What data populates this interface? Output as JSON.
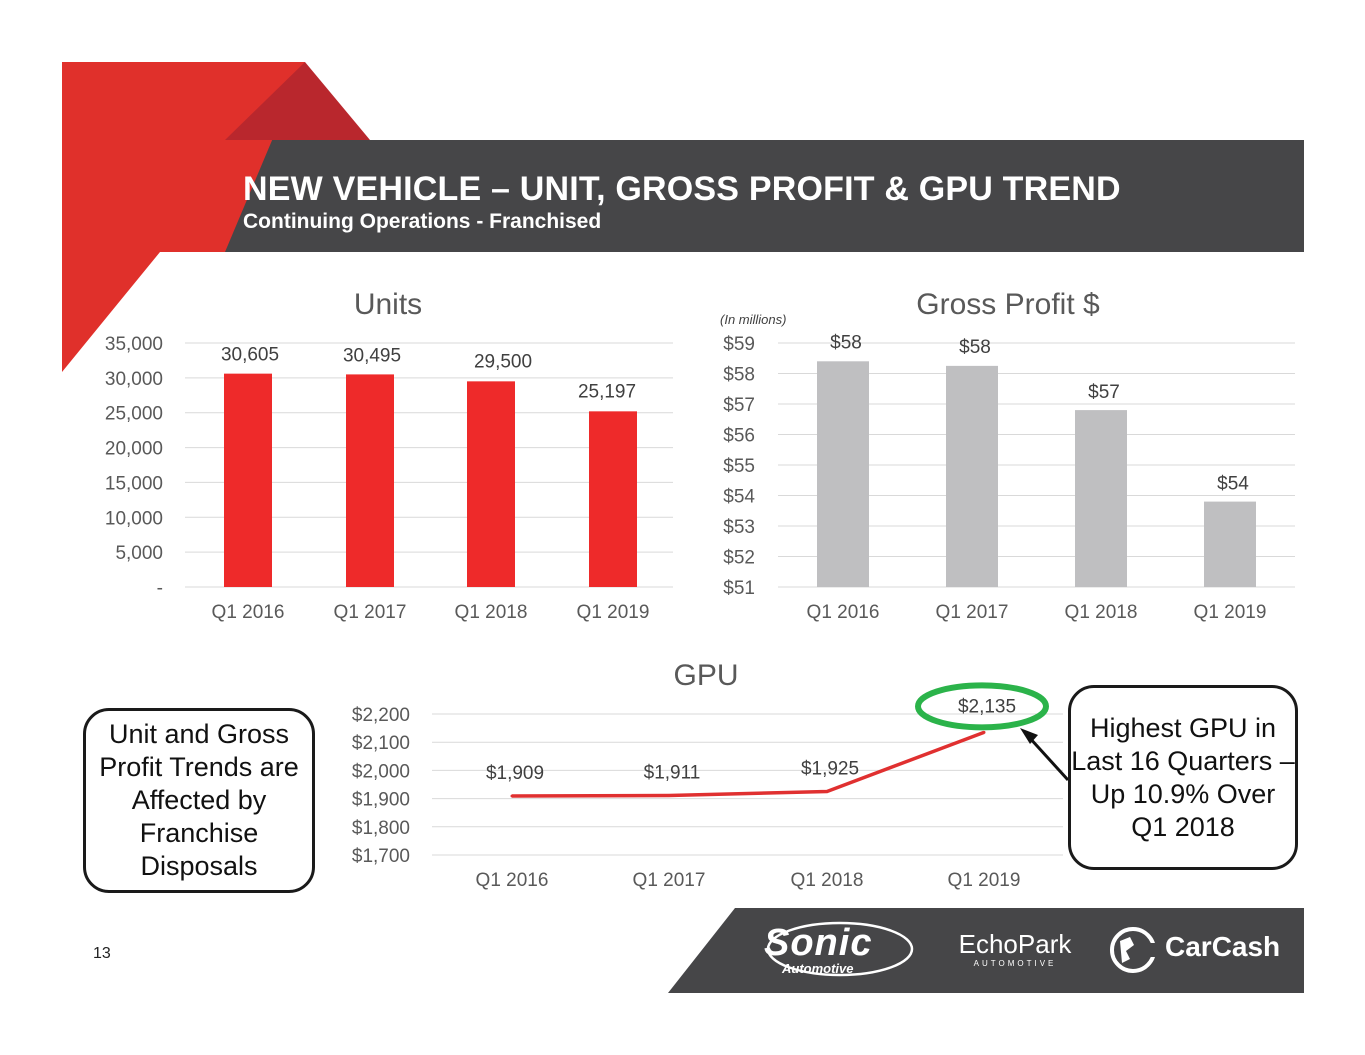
{
  "header": {
    "title": "NEW VEHICLE – UNIT, GROSS PROFIT & GPU TREND",
    "subtitle": "Continuing Operations - Franchised"
  },
  "colors": {
    "brand_red": "#e02a27",
    "dark_red": "#b4262b",
    "banner_gray": "#464648",
    "units_bar": "#ee2a2a",
    "gp_bar": "#bfbfc1",
    "gpu_line": "#e03030",
    "highlight_ring": "#2bb34a"
  },
  "chart_data": [
    {
      "id": "units",
      "type": "bar",
      "title": "Units",
      "categories": [
        "Q1 2016",
        "Q1 2017",
        "Q1 2018",
        "Q1 2019"
      ],
      "values": [
        30605,
        30495,
        29500,
        25197
      ],
      "data_labels": [
        "30,605",
        "30,495",
        "29,500",
        "25,197"
      ],
      "ylim": [
        0,
        35000
      ],
      "yticks": [
        0,
        5000,
        10000,
        15000,
        20000,
        25000,
        30000,
        35000
      ],
      "ytick_labels": [
        "-",
        "5,000",
        "10,000",
        "15,000",
        "20,000",
        "25,000",
        "30,000",
        "35,000"
      ],
      "grid": true
    },
    {
      "id": "gross_profit",
      "type": "bar",
      "title": "Gross Profit $",
      "note": "(In millions)",
      "categories": [
        "Q1 2016",
        "Q1 2017",
        "Q1 2018",
        "Q1 2019"
      ],
      "values": [
        58.4,
        58.25,
        56.8,
        53.8
      ],
      "data_labels": [
        "$58",
        "$58",
        "$57",
        "$54"
      ],
      "ylim": [
        51,
        59
      ],
      "yticks": [
        51,
        52,
        53,
        54,
        55,
        56,
        57,
        58,
        59
      ],
      "ytick_labels": [
        "$51",
        "$52",
        "$53",
        "$54",
        "$55",
        "$56",
        "$57",
        "$58",
        "$59"
      ],
      "grid": true
    },
    {
      "id": "gpu",
      "type": "line",
      "title": "GPU",
      "categories": [
        "Q1 2016",
        "Q1 2017",
        "Q1 2018",
        "Q1 2019"
      ],
      "values": [
        1909,
        1911,
        1925,
        2135
      ],
      "data_labels": [
        "$1,909",
        "$1,911",
        "$1,925",
        "$2,135"
      ],
      "ylim": [
        1700,
        2200
      ],
      "yticks": [
        1700,
        1800,
        1900,
        2000,
        2100,
        2200
      ],
      "ytick_labels": [
        "$1,700",
        "$1,800",
        "$1,900",
        "$2,000",
        "$2,100",
        "$2,200"
      ],
      "grid": true,
      "highlight_index": 3
    }
  ],
  "callouts": {
    "left": "Unit and Gross Profit Trends are Affected by Franchise Disposals",
    "right": "Highest GPU in Last 16 Quarters – Up 10.9% Over Q1 2018"
  },
  "footer": {
    "page_number": "13",
    "logos": {
      "sonic_main": "Sonic",
      "sonic_sub": "Automotive",
      "echopark_main": "EchoPark",
      "echopark_sub": "AUTOMOTIVE",
      "carcash": "CarCash"
    }
  }
}
